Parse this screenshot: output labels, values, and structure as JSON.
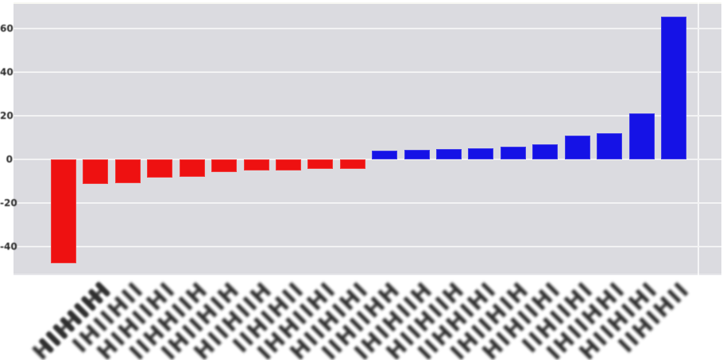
{
  "chart_data": {
    "type": "bar",
    "title": "",
    "xlabel": "",
    "ylabel": "",
    "note": "diverging sorted bar chart; x tick labels are illegible (blurred rotated text) in the source pixels, transcribed as stroke placeholders",
    "categories": [
      "HIIHIIH",
      "IIHIIHI",
      "IHIIHII",
      "HIHIIHI",
      "IIHHIIH",
      "IHIIHIH",
      "HIIHIIH",
      "IIHIHII",
      "IHHIIHI",
      "HIIHIHI",
      "IIHIIHH",
      "IHIHIIH",
      "HIIHIIH",
      "IIHHIHI",
      "IHIIHIH",
      "HIHIIHI",
      "IIHIIHI",
      "IHIIHHI",
      "HIIHIHI",
      "IIHIHII"
    ],
    "values": [
      -47.6,
      -11.3,
      -10.9,
      -8.4,
      -8.0,
      -5.8,
      -5.1,
      -5.1,
      -4.4,
      -4.4,
      4.0,
      4.4,
      4.7,
      5.1,
      5.8,
      6.9,
      10.9,
      12.0,
      21.1,
      65.5
    ],
    "ytick_labels": [
      "60",
      "40",
      "20",
      "0",
      "-20",
      "-40"
    ],
    "ytick_values": [
      60,
      40,
      20,
      0,
      -20,
      -40
    ],
    "ylim": [
      -53,
      72
    ],
    "grid": true,
    "legend": null,
    "colors": {
      "negative_bar": "#ee1111",
      "positive_bar": "#1512e6",
      "plot_background": "#dbdbe0",
      "gridline": "#f3f3f4",
      "tick_text": "#2b2b2b",
      "page_background": "#ffffff"
    }
  }
}
